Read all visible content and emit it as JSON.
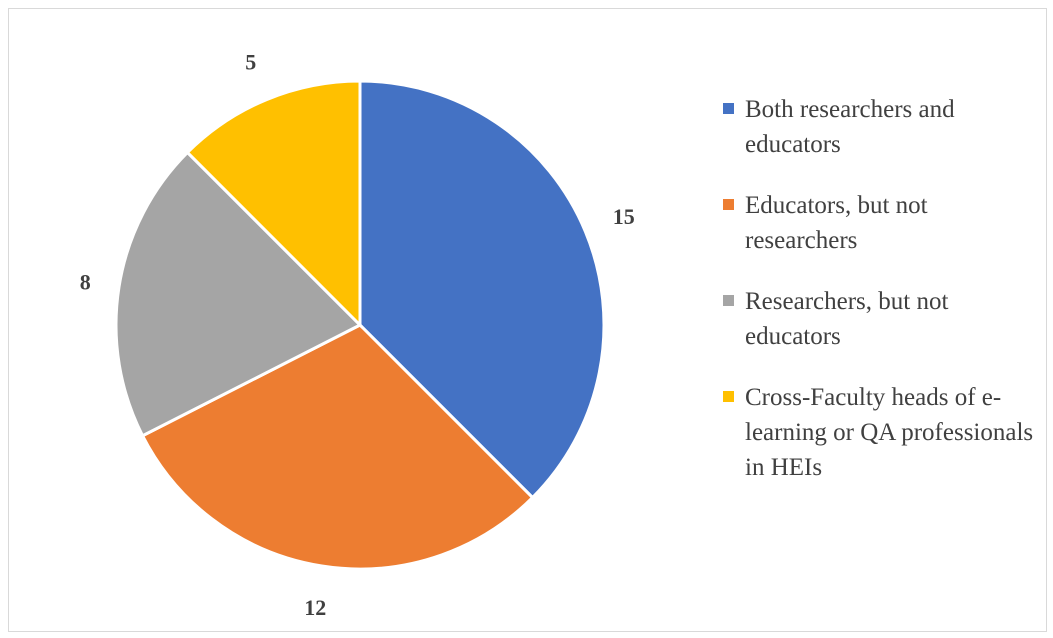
{
  "chart_data": {
    "type": "pie",
    "title": "",
    "start_angle_deg": 0,
    "direction": "clockwise",
    "slices": [
      {
        "label": "Both researchers and educators",
        "value": 15,
        "color": "#4472C4"
      },
      {
        "label": "Educators, but not researchers",
        "value": 12,
        "color": "#ED7D31"
      },
      {
        "label": "Researchers, but not educators",
        "value": 8,
        "color": "#A5A5A5"
      },
      {
        "label": "Cross-Faculty heads of e-learning or QA professionals in HEIs",
        "value": 5,
        "color": "#FFC000"
      }
    ],
    "data_labels": [
      "15",
      "12",
      "8",
      "5"
    ],
    "legend": {
      "position": "right",
      "entries": [
        "Both researchers and educators",
        "Educators, but not researchers",
        "Researchers, but not educators",
        "Cross-Faculty heads of e-learning or QA professionals in HEIs"
      ]
    }
  }
}
